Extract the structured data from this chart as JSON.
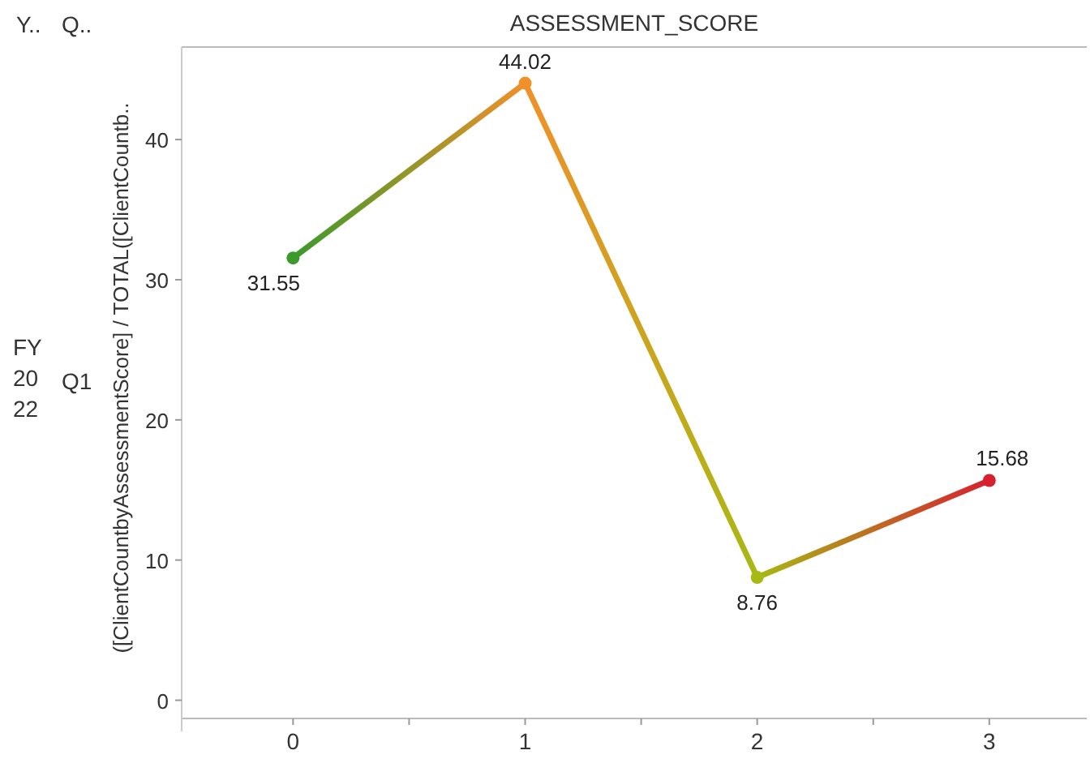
{
  "chart_data": {
    "type": "line",
    "title": "ASSESSMENT_SCORE",
    "ylabel": "([ClientCountbyAssessmentScore] / TOTAL([ClientCountb..",
    "annotations": [
      "Y..",
      "Q..",
      "FY 2022",
      "Q1"
    ],
    "x": [
      0,
      1,
      2,
      3
    ],
    "xlim": [
      -0.48,
      3.42
    ],
    "xticks": [
      0,
      {
        "value": 0.5,
        "label": null
      },
      1,
      {
        "value": 1.5,
        "label": null
      },
      2,
      {
        "value": 2.5,
        "label": null
      },
      3
    ],
    "ylim": [
      -1.3,
      46.6
    ],
    "yticks": [
      0,
      10,
      20,
      30,
      40
    ],
    "series": [
      {
        "colors": [
          "#3a9a2a",
          "#f0902a",
          "#a8b814",
          "#d62030"
        ],
        "values": [
          31.55,
          44.02,
          8.76,
          15.68
        ]
      }
    ],
    "data_labels": true,
    "marker": "circle",
    "grid": false
  }
}
